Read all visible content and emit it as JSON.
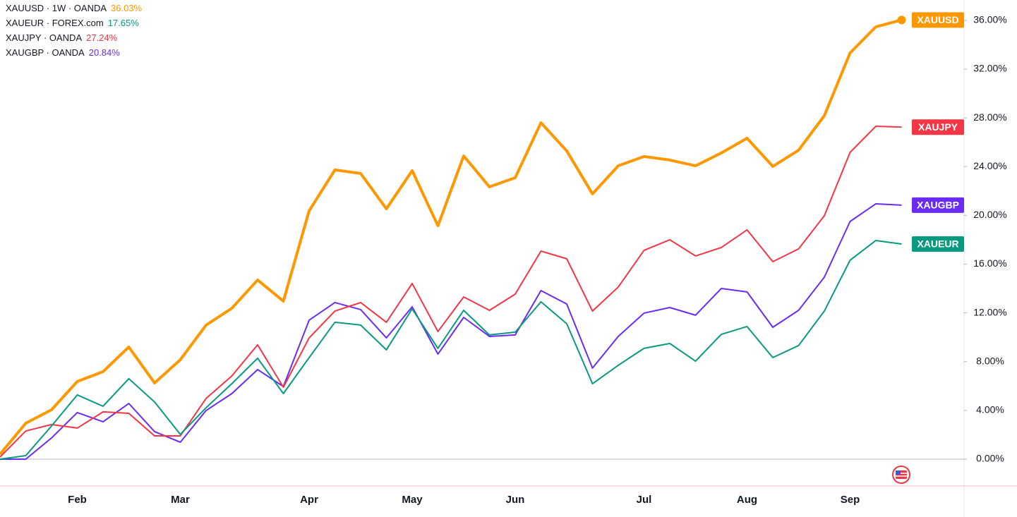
{
  "chart_data": {
    "type": "line",
    "categories": [
      null,
      null,
      null,
      "Feb",
      null,
      null,
      null,
      "Mar",
      null,
      null,
      null,
      null,
      "Apr",
      null,
      null,
      null,
      "May",
      null,
      null,
      null,
      "Jun",
      null,
      null,
      null,
      null,
      "Jul",
      null,
      null,
      null,
      "Aug",
      null,
      null,
      null,
      "Sep",
      null,
      null
    ],
    "series": [
      {
        "name": "XAUUSD",
        "legend": "XAUUSD · 1W · OANDA",
        "last_value_label": "36.03%",
        "color": "#ff9800",
        "width": 4,
        "end_dot": true,
        "values": [
          0.4,
          2.95,
          4.05,
          6.37,
          7.18,
          9.2,
          6.25,
          8.16,
          11.0,
          12.38,
          14.7,
          12.96,
          20.37,
          23.73,
          23.44,
          20.54,
          23.67,
          19.15,
          24.88,
          22.34,
          23.09,
          27.6,
          25.29,
          21.76,
          24.07,
          24.83,
          24.54,
          24.07,
          25.12,
          26.33,
          24.02,
          25.35,
          28.18,
          33.33,
          35.47,
          36.03
        ]
      },
      {
        "name": "XAUEUR",
        "legend": "XAUEUR · FOREX.com",
        "last_value_label": "17.65%",
        "color": "#089981",
        "width": 2,
        "end_dot": false,
        "values": [
          0,
          0.29,
          2.72,
          5.27,
          4.34,
          6.6,
          4.69,
          2.03,
          4.22,
          6.19,
          8.28,
          5.38,
          8.33,
          11.23,
          11.0,
          8.97,
          12.33,
          9.09,
          12.21,
          10.19,
          10.42,
          12.91,
          11.11,
          6.19,
          7.7,
          9.09,
          9.49,
          8.04,
          10.24,
          10.88,
          8.33,
          9.32,
          12.15,
          16.32,
          17.94,
          17.65
        ]
      },
      {
        "name": "XAUJPY",
        "legend": "XAUJPY · OANDA",
        "last_value_label": "27.24%",
        "color": "#f23645",
        "width": 2,
        "end_dot": false,
        "values": [
          0.17,
          2.31,
          2.84,
          2.55,
          3.88,
          3.76,
          1.91,
          1.91,
          4.98,
          6.83,
          9.38,
          5.9,
          9.95,
          12.15,
          12.85,
          11.23,
          14.41,
          10.47,
          13.31,
          12.21,
          13.54,
          17.07,
          16.44,
          12.15,
          14.12,
          17.13,
          18.0,
          16.67,
          17.36,
          18.81,
          16.2,
          17.25,
          19.97,
          25.17,
          27.31,
          27.24
        ]
      },
      {
        "name": "XAUGBP",
        "legend": "XAUGBP · OANDA",
        "last_value_label": "20.84%",
        "color": "#6a2cf5",
        "width": 2,
        "end_dot": false,
        "values": [
          0,
          0,
          1.74,
          3.82,
          3.07,
          4.57,
          2.26,
          1.39,
          3.99,
          5.38,
          7.35,
          5.96,
          11.4,
          12.85,
          12.27,
          9.95,
          12.5,
          8.62,
          11.63,
          10.07,
          10.19,
          13.83,
          12.73,
          7.47,
          10.07,
          11.98,
          12.44,
          11.81,
          14.0,
          13.72,
          10.82,
          12.21,
          14.93,
          19.5,
          20.95,
          20.84
        ]
      }
    ],
    "ylim": [
      -2.2,
      37.67
    ],
    "yticks": [
      {
        "value": 0,
        "label": "0.00%"
      },
      {
        "value": 4,
        "label": "4.00%"
      },
      {
        "value": 8,
        "label": "8.00%"
      },
      {
        "value": 12,
        "label": "12.00%"
      },
      {
        "value": 16,
        "label": "16.00%"
      },
      {
        "value": 20,
        "label": "20.00%"
      },
      {
        "value": 24,
        "label": "24.00%"
      },
      {
        "value": 28,
        "label": "28.00%"
      },
      {
        "value": 32,
        "label": "32.00%"
      },
      {
        "value": 36,
        "label": "36.00%"
      }
    ],
    "baseline": true
  }
}
